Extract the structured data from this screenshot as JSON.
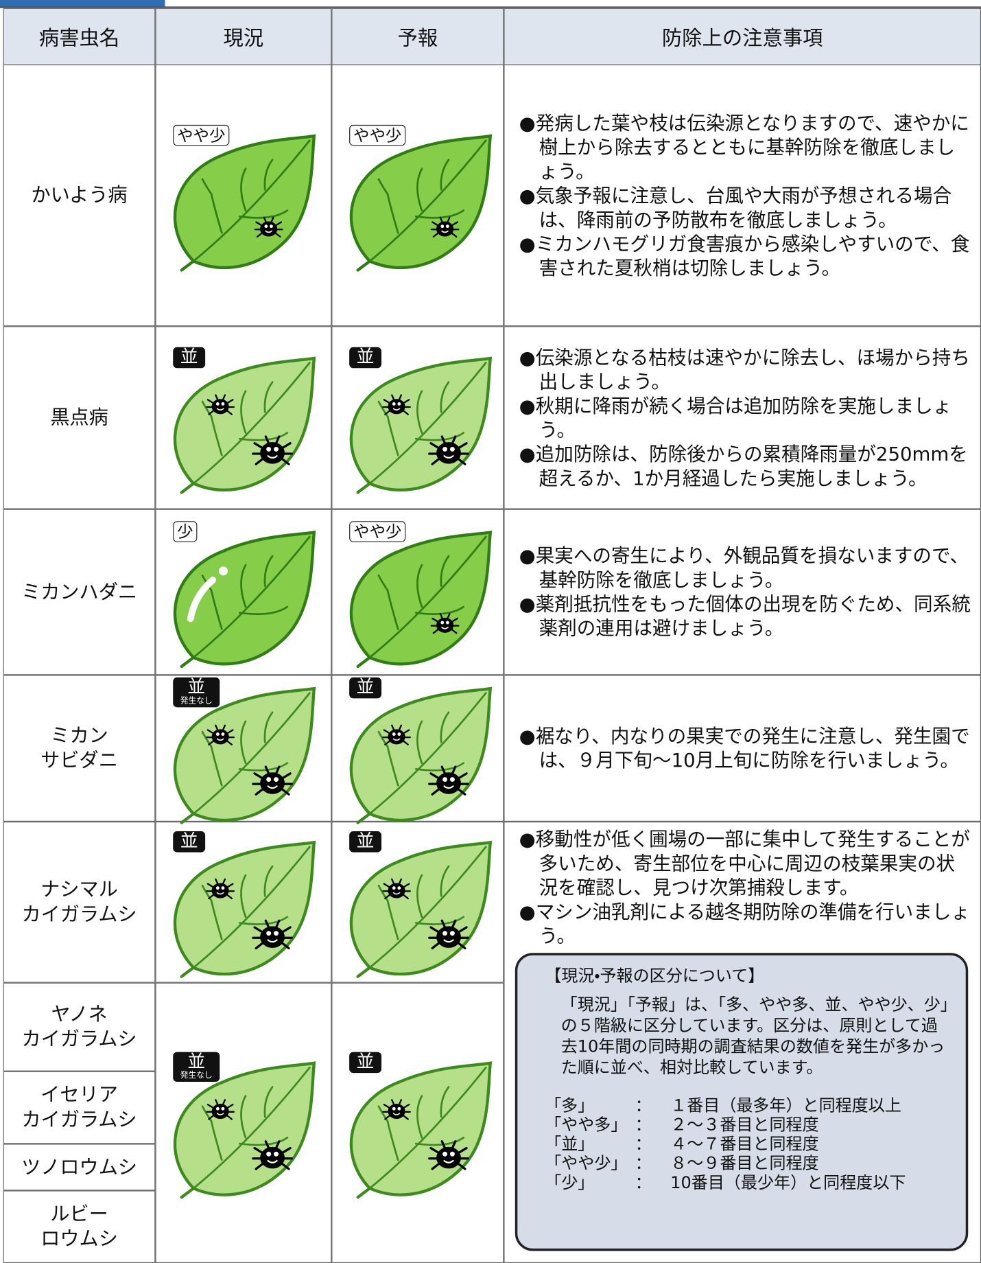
{
  "header": {
    "columns": [
      "病害虫名",
      "現況",
      "予報",
      "防除上の注意事項"
    ]
  },
  "rows": [
    {
      "name": [
        "かいよう病"
      ],
      "current": {
        "badge": "やや少"
      },
      "forecast": {
        "badge": "やや少"
      },
      "notes": [
        "●発病した葉や枝は伝染源となりますので、速やかに樹上から除去するとともに基幹防除を徹底しましょう。",
        "●気象予報に注意し、台風や大雨が予想される場合は、降雨前の予防散布を徹底しましょう。",
        "●ミカンハモグリガ食害痕から感染しやすいので、食害された夏秋梢は切除しましょう。"
      ]
    },
    {
      "name": [
        "黒点病"
      ],
      "current": {
        "badge": "並"
      },
      "forecast": {
        "badge": "並"
      },
      "notes": [
        "●伝染源となる枯枝は速やかに除去し、ほ場から持ち出しましょう。",
        "●秋期に降雨が続く場合は追加防除を実施しましょう。",
        "●追加防除は、防除後からの累積降雨量が250mmを超えるか、1か月経過したら実施しましょう。"
      ]
    },
    {
      "name": [
        "ミカンハダニ"
      ],
      "current": {
        "badge": "少"
      },
      "forecast": {
        "badge": "やや少"
      },
      "notes": [
        "●果実への寄生により、外観品質を損ないますので、基幹防除を徹底しましょう。",
        "●薬剤抵抗性をもった個体の出現を防ぐため、同系統薬剤の連用は避けましょう。"
      ]
    },
    {
      "name": [
        "ミカン",
        "サビダニ"
      ],
      "current": {
        "badge": "並",
        "sub": "発生なし"
      },
      "forecast": {
        "badge": "並"
      },
      "notes": [
        "●裾なり、内なりの果実での発生に注意し、発生園では、９月下旬～10月上旬に防除を行いましょう。"
      ]
    },
    {
      "name": [
        "ナシマル",
        "カイガラムシ"
      ],
      "current": {
        "badge": "並"
      },
      "forecast": {
        "badge": "並"
      },
      "notes": [
        "●移動性が低く圃場の一部に集中して発生することが多いため、寄生部位を中心に周辺の枝葉果実の状況を確認し、見つけ次第捕殺します。",
        "●マシン油乳剤による越冬期防除の準備を行いましょう。"
      ]
    }
  ],
  "group": {
    "names": [
      [
        "ヤノネ",
        "カイガラムシ"
      ],
      [
        "イセリア",
        "カイガラムシ"
      ],
      [
        "ツノロウムシ"
      ],
      [
        "ルビー",
        "ロウムシ"
      ]
    ],
    "current": {
      "badge": "並",
      "sub": "発生なし"
    },
    "forecast": {
      "badge": "並"
    }
  },
  "legend": {
    "title": "【現況・予報の区分について】",
    "body": "「現況」「予報」は、「多、やや多、並、やや少、少」の５階級に区分しています。区分は、原則として過去10年間の同時期の調査結果の数値を発生が多かった順に並べ、相対比較しています。",
    "items": [
      [
        "「多」",
        "：",
        "１番目（最多年）と同程度以上"
      ],
      [
        "「やや多」",
        "：",
        "２～３番目と同程度"
      ],
      [
        "「並」",
        "：",
        "４～７番目と同程度"
      ],
      [
        "「やや少」",
        "：",
        "８～９番目と同程度"
      ],
      [
        "「少」",
        "：",
        "10番目（最少年）と同程度以下"
      ]
    ]
  }
}
